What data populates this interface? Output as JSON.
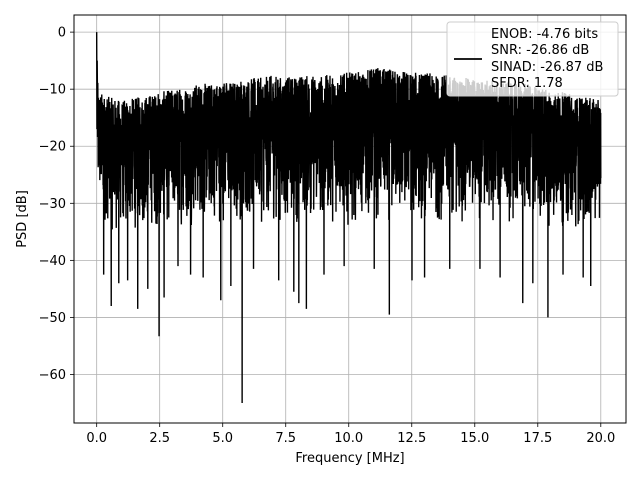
{
  "chart_data": {
    "type": "line",
    "title": "",
    "xlabel": "Frequency [MHz]",
    "ylabel": "PSD [dB]",
    "xlim": [
      -0.9,
      21.0
    ],
    "ylim": [
      -68.5,
      3.0
    ],
    "xticks": [
      0.0,
      2.5,
      5.0,
      7.5,
      10.0,
      12.5,
      15.0,
      17.5,
      20.0
    ],
    "xtick_labels": [
      "0.0",
      "2.5",
      "5.0",
      "7.5",
      "10.0",
      "12.5",
      "15.0",
      "17.5",
      "20.0"
    ],
    "yticks": [
      0,
      -10,
      -20,
      -30,
      -40,
      -50,
      -60
    ],
    "ytick_labels": [
      "0",
      "−10",
      "−20",
      "−30",
      "−40",
      "−50",
      "−60"
    ],
    "grid": true,
    "legend_position": "top-right",
    "legend_entries": [
      "ENOB: -4.76 bits",
      "SNR: -26.86 dB",
      "SINAD: -26.87 dB",
      "SFDR: 1.78"
    ],
    "series": [
      {
        "color": "#000000",
        "description": "Dense noise-like PSD trace from 0 to 20 MHz; peak near 0 dB at 0 MHz, floor mostly between about -35 and -10 dB",
        "envelope_x": [
          0.0,
          0.05,
          0.3,
          0.6,
          1.0,
          1.5,
          2.0,
          2.5,
          3.0,
          3.5,
          4.0,
          4.5,
          5.0,
          5.5,
          6.0,
          6.5,
          7.0,
          7.5,
          8.0,
          8.5,
          9.0,
          9.5,
          10.0,
          10.5,
          11.0,
          11.5,
          12.0,
          12.5,
          13.0,
          13.5,
          14.0,
          14.5,
          15.0,
          15.5,
          16.0,
          16.5,
          17.0,
          17.5,
          18.0,
          18.5,
          19.0,
          19.5,
          20.0
        ],
        "envelope_upper": [
          0.0,
          -10.0,
          -11.0,
          -11.5,
          -12.0,
          -11.5,
          -11.0,
          -10.5,
          -10.0,
          -9.5,
          -9.0,
          -9.0,
          -8.5,
          -8.5,
          -8.0,
          -8.0,
          -7.5,
          -8.0,
          -7.5,
          -7.5,
          -7.5,
          -7.5,
          -7.0,
          -7.0,
          -6.0,
          -6.5,
          -6.5,
          -7.0,
          -7.0,
          -7.5,
          -7.5,
          -8.0,
          -8.0,
          -8.5,
          -8.5,
          -9.0,
          -9.0,
          -9.5,
          -10.0,
          -10.5,
          -11.0,
          -11.5,
          -12.0
        ],
        "envelope_lower": [
          -28.0,
          -32.0,
          -34.0,
          -36.0,
          -36.0,
          -35.5,
          -35.0,
          -35.0,
          -34.5,
          -34.5,
          -34.0,
          -34.0,
          -34.0,
          -34.0,
          -34.0,
          -34.0,
          -34.0,
          -34.0,
          -34.0,
          -34.0,
          -34.0,
          -34.0,
          -34.0,
          -34.0,
          -34.0,
          -34.0,
          -34.0,
          -34.0,
          -34.0,
          -34.0,
          -34.0,
          -34.0,
          -34.0,
          -34.0,
          -34.0,
          -34.0,
          -34.0,
          -34.5,
          -34.5,
          -35.0,
          -35.0,
          -35.0,
          -34.0
        ],
        "dips": [
          {
            "x": 0.25,
            "y": -42.5
          },
          {
            "x": 0.55,
            "y": -48.0
          },
          {
            "x": 0.85,
            "y": -44.0
          },
          {
            "x": 1.2,
            "y": -43.5
          },
          {
            "x": 1.6,
            "y": -48.5
          },
          {
            "x": 2.0,
            "y": -45.0
          },
          {
            "x": 2.45,
            "y": -53.3
          },
          {
            "x": 2.65,
            "y": -46.5
          },
          {
            "x": 3.2,
            "y": -41.0
          },
          {
            "x": 3.7,
            "y": -42.5
          },
          {
            "x": 4.2,
            "y": -43.0
          },
          {
            "x": 4.9,
            "y": -47.0
          },
          {
            "x": 5.3,
            "y": -44.5
          },
          {
            "x": 5.75,
            "y": -65.0
          },
          {
            "x": 6.2,
            "y": -41.5
          },
          {
            "x": 7.2,
            "y": -43.5
          },
          {
            "x": 7.8,
            "y": -45.5
          },
          {
            "x": 8.0,
            "y": -47.5
          },
          {
            "x": 8.3,
            "y": -48.5
          },
          {
            "x": 9.0,
            "y": -42.5
          },
          {
            "x": 9.8,
            "y": -41.0
          },
          {
            "x": 11.0,
            "y": -41.5
          },
          {
            "x": 11.6,
            "y": -49.5
          },
          {
            "x": 12.5,
            "y": -43.5
          },
          {
            "x": 13.0,
            "y": -43.0
          },
          {
            "x": 14.0,
            "y": -41.5
          },
          {
            "x": 15.2,
            "y": -41.5
          },
          {
            "x": 16.0,
            "y": -43.0
          },
          {
            "x": 16.9,
            "y": -47.5
          },
          {
            "x": 17.3,
            "y": -44.0
          },
          {
            "x": 17.9,
            "y": -50.0
          },
          {
            "x": 18.5,
            "y": -42.5
          },
          {
            "x": 19.3,
            "y": -43.0
          },
          {
            "x": 19.6,
            "y": -44.5
          }
        ]
      }
    ]
  }
}
